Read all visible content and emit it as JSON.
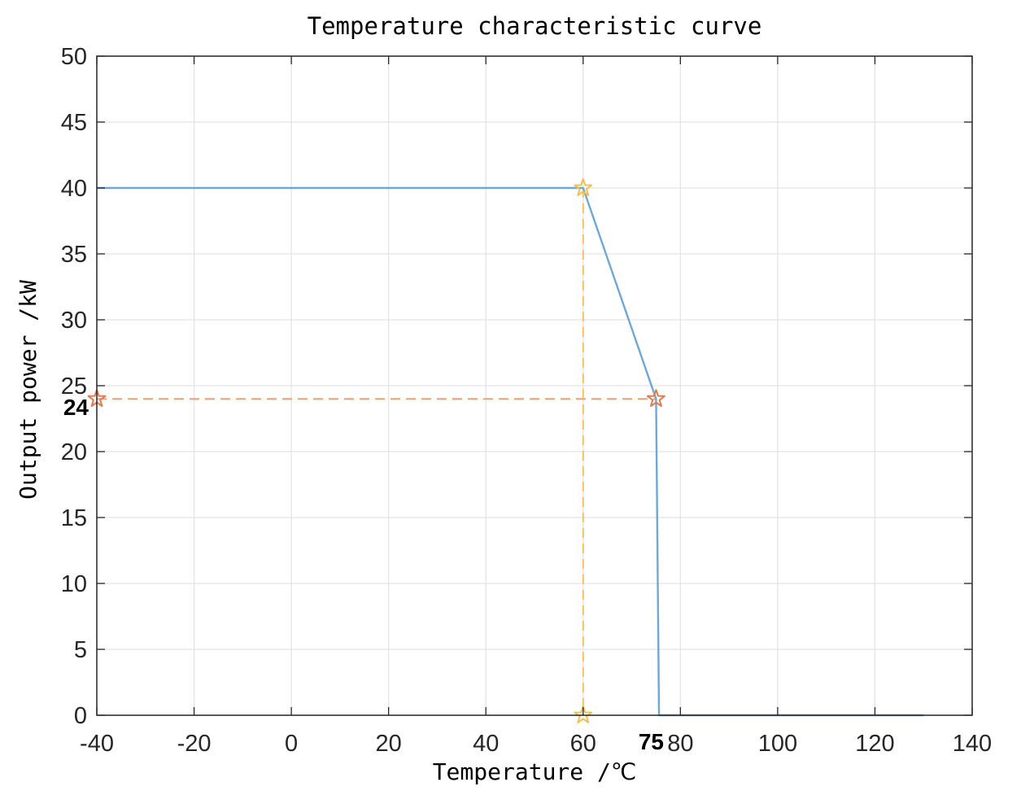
{
  "chart_data": {
    "type": "line",
    "title": "Temperature characteristic curve",
    "xlabel": "Temperature /℃",
    "ylabel": "Output power /kW",
    "xlim": [
      -40,
      140
    ],
    "ylim": [
      0,
      50
    ],
    "xticks": [
      -40,
      -20,
      0,
      20,
      40,
      60,
      80,
      100,
      120,
      140
    ],
    "yticks": [
      0,
      5,
      10,
      15,
      20,
      25,
      30,
      35,
      40,
      45,
      50
    ],
    "grid": true,
    "series": [
      {
        "color": "#6fa8d6",
        "style": "solid",
        "x": [
          -40,
          60,
          75,
          75.6,
          130
        ],
        "y": [
          40,
          40,
          24,
          0,
          0
        ]
      }
    ],
    "reference_lines": [
      {
        "color": "#f0a070",
        "style": "dashed",
        "x": [
          -40,
          75
        ],
        "y": [
          24,
          24
        ]
      },
      {
        "color": "#f5c060",
        "style": "dashed",
        "x": [
          60,
          60
        ],
        "y": [
          40,
          0
        ]
      }
    ],
    "markers": [
      {
        "shape": "star",
        "color": "#f2be4f",
        "x": 60,
        "y": 40
      },
      {
        "shape": "star",
        "color": "#f2be4f",
        "x": 60,
        "y": 0
      },
      {
        "shape": "star",
        "color": "#e07a4f",
        "x": 75,
        "y": 24
      },
      {
        "shape": "star",
        "color": "#e07a4f",
        "x": -40,
        "y": 24
      }
    ],
    "annotations": [
      {
        "text": "24",
        "axis": "y",
        "value": 24
      },
      {
        "text": "75",
        "axis": "x",
        "value": 75
      }
    ]
  }
}
